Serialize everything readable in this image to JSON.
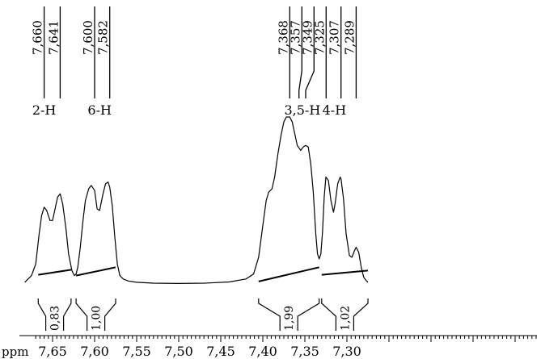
{
  "chart_data": {
    "type": "line",
    "title": "",
    "xlabel": "ppm",
    "ylabel": "",
    "x_reversed": true,
    "xlim": [
      7.665,
      7.275
    ],
    "ylim": [
      0,
      1.0
    ],
    "x_ticks": [
      {
        "value": 7.65,
        "label": "7,65"
      },
      {
        "value": 7.6,
        "label": "7,60"
      },
      {
        "value": 7.55,
        "label": "7,55"
      },
      {
        "value": 7.5,
        "label": "7,50"
      },
      {
        "value": 7.45,
        "label": "7,45"
      },
      {
        "value": 7.4,
        "label": "7,40"
      },
      {
        "value": 7.35,
        "label": "7,35"
      },
      {
        "value": 7.3,
        "label": "7,30"
      }
    ],
    "peak_labels": [
      {
        "ppm": 7.66,
        "label": "7,660"
      },
      {
        "ppm": 7.641,
        "label": "7,641"
      },
      {
        "ppm": 7.6,
        "label": "7,600"
      },
      {
        "ppm": 7.582,
        "label": "7,582"
      },
      {
        "ppm": 7.368,
        "label": "7,368"
      },
      {
        "ppm": 7.357,
        "label": "7,357"
      },
      {
        "ppm": 7.349,
        "label": "7,349"
      },
      {
        "ppm": 7.325,
        "label": "7,325"
      },
      {
        "ppm": 7.307,
        "label": "7,307"
      },
      {
        "ppm": 7.289,
        "label": "7,289"
      }
    ],
    "group_labels": [
      {
        "ppm": 7.66,
        "label": "2-H"
      },
      {
        "ppm": 7.594,
        "label": "6-H"
      },
      {
        "ppm": 7.353,
        "label": "3,5-H"
      },
      {
        "ppm": 7.315,
        "label": "4-H"
      }
    ],
    "integrals": [
      {
        "from": 7.667,
        "to": 7.628,
        "value": "0,83"
      },
      {
        "from": 7.622,
        "to": 7.575,
        "value": "1,00"
      },
      {
        "from": 7.405,
        "to": 7.333,
        "value": "1,99"
      },
      {
        "from": 7.33,
        "to": 7.275,
        "value": "1,02"
      }
    ],
    "series": [
      {
        "x": [
          7.683,
          7.675,
          7.67,
          7.666,
          7.663,
          7.66,
          7.657,
          7.653,
          7.65,
          7.647,
          7.644,
          7.641,
          7.638,
          7.634,
          7.631,
          7.627,
          7.624,
          7.622,
          7.62,
          7.617,
          7.614,
          7.611,
          7.607,
          7.604,
          7.6,
          7.597,
          7.594,
          7.59,
          7.587,
          7.584,
          7.582,
          7.579,
          7.576,
          7.573,
          7.57,
          7.566,
          7.56,
          7.55,
          7.53,
          7.5,
          7.47,
          7.44,
          7.42,
          7.411,
          7.405,
          7.4,
          7.396,
          7.393,
          7.389,
          7.386,
          7.382,
          7.378,
          7.375,
          7.372,
          7.368,
          7.365,
          7.362,
          7.359,
          7.355,
          7.352,
          7.349,
          7.346,
          7.343,
          7.34,
          7.337,
          7.335,
          7.333,
          7.331,
          7.329,
          7.327,
          7.325,
          7.322,
          7.319,
          7.316,
          7.314,
          7.311,
          7.308,
          7.307,
          7.304,
          7.301,
          7.297,
          7.294,
          7.291,
          7.289,
          7.286,
          7.283,
          7.28,
          7.277,
          7.275
        ],
        "y": [
          0.01,
          0.05,
          0.12,
          0.3,
          0.41,
          0.46,
          0.44,
          0.38,
          0.38,
          0.45,
          0.52,
          0.54,
          0.48,
          0.33,
          0.18,
          0.08,
          0.05,
          0.06,
          0.1,
          0.22,
          0.37,
          0.5,
          0.57,
          0.59,
          0.56,
          0.45,
          0.44,
          0.54,
          0.6,
          0.61,
          0.58,
          0.47,
          0.28,
          0.12,
          0.05,
          0.03,
          0.018,
          0.01,
          0.005,
          0.003,
          0.005,
          0.012,
          0.03,
          0.06,
          0.16,
          0.35,
          0.5,
          0.55,
          0.57,
          0.64,
          0.78,
          0.9,
          0.97,
          1.0,
          1.0,
          0.97,
          0.9,
          0.83,
          0.8,
          0.82,
          0.83,
          0.82,
          0.72,
          0.55,
          0.3,
          0.18,
          0.15,
          0.18,
          0.31,
          0.52,
          0.64,
          0.62,
          0.5,
          0.43,
          0.48,
          0.6,
          0.64,
          0.63,
          0.51,
          0.3,
          0.17,
          0.16,
          0.2,
          0.22,
          0.19,
          0.1,
          0.04,
          0.02,
          0.01
        ]
      }
    ],
    "integral_curves": [
      {
        "x": [
          7.667,
          7.628
        ],
        "y": [
          0.055,
          0.085
        ]
      },
      {
        "x": [
          7.622,
          7.575
        ],
        "y": [
          0.05,
          0.1
        ]
      },
      {
        "x": [
          7.405,
          7.333
        ],
        "y": [
          0.015,
          0.1
        ]
      },
      {
        "x": [
          7.33,
          7.275
        ],
        "y": [
          0.055,
          0.08
        ]
      }
    ]
  }
}
